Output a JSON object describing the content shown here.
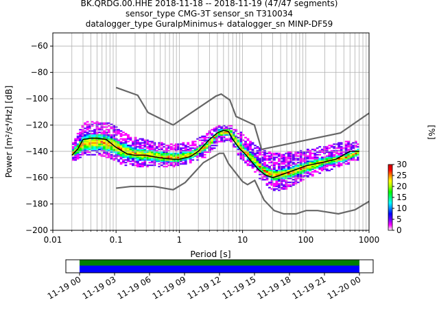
{
  "chart_data": {
    "type": "heatmap",
    "title_lines": [
      "BK.QRDG.00.HHE   2018-11-18 -- 2018-11-19  (47/47 segments)",
      "sensor_type CMG-3T sensor_sn T310034",
      "datalogger_type GuralpMinimus+ datalogger_sn MINP-DF59"
    ],
    "xlabel": "Period [s]",
    "ylabel": "Power [m²/s⁴/Hz] [dB]",
    "xscale": "log",
    "xlim": [
      0.01,
      1000
    ],
    "ylim": [
      -200,
      -50
    ],
    "x_tick_labels": [
      "0.01",
      "0.1",
      "1",
      "10",
      "100",
      "1000"
    ],
    "y_tick_labels": [
      "−60",
      "−80",
      "−100",
      "−120",
      "−140",
      "−160",
      "−180",
      "−200"
    ],
    "grid": true,
    "colorbar": {
      "label": "[%]",
      "range": [
        0,
        30
      ],
      "tick_labels": [
        "0",
        "5",
        "10",
        "15",
        "20",
        "25",
        "30"
      ],
      "colormap": [
        "#ffffff",
        "#ff00ff",
        "#6600ff",
        "#0000ff",
        "#0088ff",
        "#00ffff",
        "#00ff80",
        "#00ff00",
        "#aaff00",
        "#ffff00",
        "#ff8800",
        "#ff0000",
        "#cc0000"
      ]
    },
    "noise_model_high": [
      [
        0.1,
        -91.5
      ],
      [
        0.22,
        -97.4
      ],
      [
        0.32,
        -110.5
      ],
      [
        0.8,
        -120
      ],
      [
        3.8,
        -98
      ],
      [
        4.6,
        -96.5
      ],
      [
        6.3,
        -101
      ],
      [
        7.9,
        -113.5
      ],
      [
        15.4,
        -120
      ],
      [
        20,
        -138.5
      ],
      [
        354,
        -126
      ],
      [
        1000,
        -111
      ]
    ],
    "noise_model_low": [
      [
        0.1,
        -168
      ],
      [
        0.17,
        -166.7
      ],
      [
        0.4,
        -166.7
      ],
      [
        0.8,
        -169.2
      ],
      [
        1.24,
        -163.7
      ],
      [
        2.4,
        -148.6
      ],
      [
        4.3,
        -141.5
      ],
      [
        5,
        -141.5
      ],
      [
        6,
        -149.4
      ],
      [
        10,
        -163
      ],
      [
        12,
        -165.3
      ],
      [
        15.6,
        -162.1
      ],
      [
        21.9,
        -177
      ],
      [
        31.6,
        -185
      ],
      [
        45,
        -187.5
      ],
      [
        70,
        -187.5
      ],
      [
        101,
        -185
      ],
      [
        154,
        -185
      ],
      [
        328,
        -187.5
      ],
      [
        600,
        -184.4
      ],
      [
        1000,
        -178
      ]
    ],
    "mean_curve": [
      [
        0.02,
        -143
      ],
      [
        0.025,
        -138
      ],
      [
        0.03,
        -131
      ],
      [
        0.04,
        -130
      ],
      [
        0.05,
        -130
      ],
      [
        0.07,
        -131
      ],
      [
        0.1,
        -137
      ],
      [
        0.15,
        -142
      ],
      [
        0.2,
        -143
      ],
      [
        0.3,
        -143
      ],
      [
        0.5,
        -145
      ],
      [
        0.8,
        -146
      ],
      [
        1,
        -146
      ],
      [
        1.5,
        -144
      ],
      [
        2,
        -140
      ],
      [
        3,
        -131
      ],
      [
        4,
        -126
      ],
      [
        5,
        -124
      ],
      [
        6,
        -125
      ],
      [
        7,
        -131
      ],
      [
        9,
        -138
      ],
      [
        11,
        -142
      ],
      [
        14,
        -148
      ],
      [
        18,
        -154
      ],
      [
        23,
        -158
      ],
      [
        30,
        -160
      ],
      [
        40,
        -158
      ],
      [
        60,
        -155
      ],
      [
        100,
        -151
      ],
      [
        200,
        -148
      ],
      [
        300,
        -146
      ],
      [
        500,
        -140
      ],
      [
        700,
        -140
      ]
    ],
    "pdf_bands": [
      {
        "name": "envelope",
        "points": [
          [
            0.02,
            -147,
            -135
          ],
          [
            0.03,
            -143,
            -118
          ],
          [
            0.05,
            -143,
            -119
          ],
          [
            0.08,
            -145,
            -120
          ],
          [
            0.12,
            -150,
            -126
          ],
          [
            0.2,
            -151,
            -131
          ],
          [
            0.4,
            -152,
            -134
          ],
          [
            0.8,
            -151,
            -136
          ],
          [
            1.5,
            -148,
            -134
          ],
          [
            2.5,
            -144,
            -128
          ],
          [
            4,
            -134,
            -121
          ],
          [
            6,
            -131,
            -121
          ],
          [
            9,
            -146,
            -127
          ],
          [
            14,
            -153,
            -135
          ],
          [
            20,
            -163,
            -140
          ],
          [
            30,
            -170,
            -143
          ],
          [
            50,
            -168,
            -142
          ],
          [
            100,
            -160,
            -140
          ],
          [
            200,
            -155,
            -137
          ],
          [
            400,
            -150,
            -134
          ],
          [
            700,
            -146,
            -133
          ]
        ]
      },
      {
        "name": "core",
        "points": [
          [
            0.02,
            -144,
            -139
          ],
          [
            0.03,
            -140,
            -128
          ],
          [
            0.05,
            -139,
            -127
          ],
          [
            0.08,
            -141,
            -129
          ],
          [
            0.12,
            -145,
            -134
          ],
          [
            0.2,
            -147,
            -138
          ],
          [
            0.4,
            -148,
            -140
          ],
          [
            0.8,
            -149,
            -142
          ],
          [
            1.5,
            -146,
            -140
          ],
          [
            2.5,
            -140,
            -134
          ],
          [
            4,
            -129,
            -124
          ],
          [
            6,
            -128,
            -123
          ],
          [
            9,
            -141,
            -134
          ],
          [
            14,
            -150,
            -143
          ],
          [
            20,
            -158,
            -151
          ],
          [
            30,
            -163,
            -155
          ],
          [
            50,
            -161,
            -153
          ],
          [
            100,
            -156,
            -148
          ],
          [
            200,
            -151,
            -145
          ],
          [
            400,
            -148,
            -143
          ],
          [
            700,
            -143,
            -138
          ]
        ]
      }
    ]
  },
  "timeline": {
    "tick_labels": [
      "11-19 00",
      "11-19 03",
      "11-19 06",
      "11-19 09",
      "11-19 12",
      "11-19 15",
      "11-19 18",
      "11-19 21",
      "11-20 00"
    ],
    "coverage_color": "#0000ff",
    "segments_color": "#008000"
  }
}
